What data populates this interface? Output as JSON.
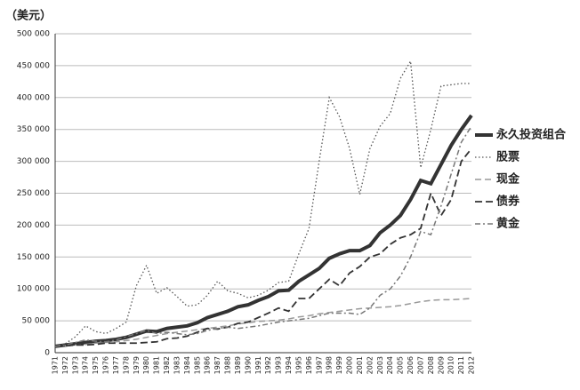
{
  "chart_data": {
    "type": "line",
    "y_label": "（美元）",
    "categories": [
      "1971",
      "1972",
      "1973",
      "1974",
      "1975",
      "1976",
      "1977",
      "1978",
      "1979",
      "1980",
      "1981",
      "1982",
      "1983",
      "1984",
      "1985",
      "1986",
      "1987",
      "1988",
      "1989",
      "1990",
      "1991",
      "1992",
      "1993",
      "1994",
      "1995",
      "1996",
      "1997",
      "1998",
      "1999",
      "2000",
      "2001",
      "2002",
      "2003",
      "2004",
      "2005",
      "2006",
      "2007",
      "2008",
      "2009",
      "2010",
      "2011",
      "2012"
    ],
    "ylim": [
      0,
      500000
    ],
    "yticks": [
      0,
      {
        "value": 50000,
        "label": "50 000"
      },
      {
        "value": 100000,
        "label": "100 000"
      },
      {
        "value": 150000,
        "label": "150 000"
      },
      {
        "value": 200000,
        "label": "200 000"
      },
      {
        "value": 250000,
        "label": "250 000"
      },
      {
        "value": 300000,
        "label": "300 000"
      },
      {
        "value": 350000,
        "label": "350 000"
      },
      {
        "value": 400000,
        "label": "400 000"
      },
      {
        "value": 450000,
        "label": "450 000"
      },
      {
        "value": 500000,
        "label": "500 000"
      }
    ],
    "grid": true,
    "legend": "right",
    "series": [
      {
        "name": "永久投资组合",
        "color": "#333333",
        "style": "solid",
        "width": 4,
        "values": [
          10000,
          12000,
          14000,
          16000,
          18000,
          19000,
          21000,
          24000,
          29000,
          34000,
          33000,
          38000,
          40000,
          42000,
          47000,
          55000,
          60000,
          65000,
          72000,
          75000,
          82000,
          88000,
          97000,
          98000,
          112000,
          122000,
          132000,
          148000,
          155000,
          160000,
          160000,
          168000,
          188000,
          200000,
          215000,
          240000,
          270000,
          265000,
          295000,
          325000,
          350000,
          372000
        ]
      },
      {
        "name": "股票",
        "color": "#555555",
        "style": "dotted",
        "width": 1.3,
        "values": [
          10000,
          14000,
          25000,
          42000,
          33000,
          30000,
          38000,
          48000,
          105000,
          137000,
          93000,
          102000,
          88000,
          73000,
          75000,
          90000,
          112000,
          97000,
          93000,
          86000,
          90000,
          98000,
          110000,
          112000,
          155000,
          195000,
          300000,
          400000,
          370000,
          320000,
          248000,
          320000,
          355000,
          375000,
          430000,
          457000,
          290000,
          350000,
          418000,
          420000,
          422000,
          422000
        ]
      },
      {
        "name": "现金",
        "color": "#999999",
        "style": "dashed-light",
        "width": 1.5,
        "values": [
          10000,
          11000,
          12000,
          13000,
          15000,
          16000,
          17000,
          19000,
          21000,
          24000,
          27000,
          30000,
          32000,
          34000,
          36000,
          38000,
          40000,
          42000,
          45000,
          47000,
          49000,
          50000,
          51000,
          53000,
          56000,
          58000,
          61000,
          63000,
          65000,
          67000,
          69000,
          70000,
          71000,
          72000,
          74000,
          77000,
          80000,
          82000,
          83000,
          83000,
          84000,
          85000
        ]
      },
      {
        "name": "债券",
        "color": "#333333",
        "style": "dashed",
        "width": 1.8,
        "values": [
          10000,
          11000,
          12000,
          12000,
          13000,
          15000,
          15000,
          15000,
          15000,
          16000,
          17000,
          22000,
          23000,
          26000,
          32000,
          38000,
          37000,
          40000,
          46000,
          48000,
          55000,
          62000,
          70000,
          65000,
          85000,
          85000,
          100000,
          115000,
          105000,
          125000,
          135000,
          150000,
          155000,
          170000,
          180000,
          185000,
          195000,
          250000,
          215000,
          240000,
          300000,
          320000
        ]
      },
      {
        "name": "黄金",
        "color": "#777777",
        "style": "dashdot",
        "width": 1.5,
        "values": [
          10000,
          12000,
          16000,
          20000,
          18000,
          17000,
          20000,
          25000,
          30000,
          35000,
          30000,
          32000,
          30000,
          28000,
          30000,
          35000,
          38000,
          40000,
          38000,
          40000,
          42000,
          45000,
          48000,
          50000,
          52000,
          54000,
          58000,
          62000,
          62000,
          62000,
          60000,
          70000,
          90000,
          100000,
          120000,
          150000,
          190000,
          185000,
          230000,
          280000,
          330000,
          355000
        ]
      }
    ]
  }
}
